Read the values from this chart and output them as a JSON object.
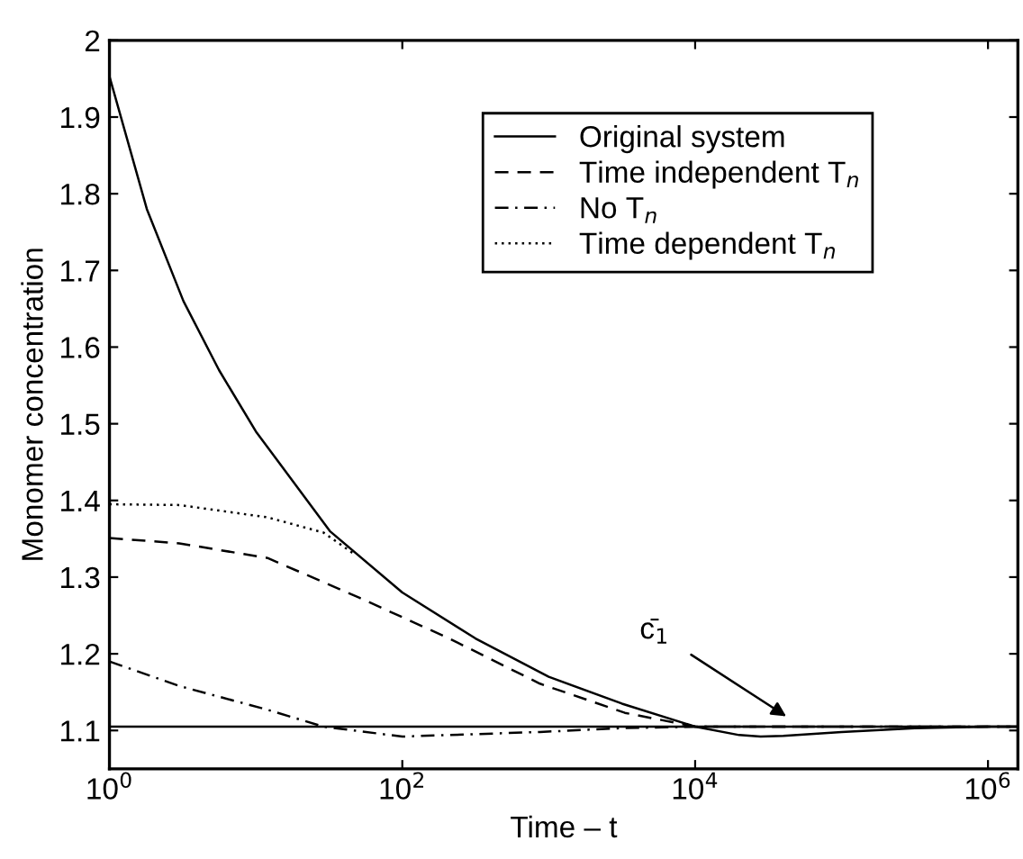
{
  "chart_data": {
    "type": "line",
    "xlabel": "Time – t",
    "ylabel": "Monomer concentration",
    "log": "x",
    "grid": false,
    "legend": "top right",
    "marker": "none",
    "xlim": [
      1,
      1600000
    ],
    "xticks": [
      {
        "value": 1,
        "label": "10$^{0}$"
      },
      {
        "value": 100,
        "label": "10$^{2}$"
      },
      {
        "value": 10000,
        "label": "10$^{4}$"
      },
      {
        "value": 1000000,
        "label": "10$^{6}$"
      }
    ],
    "ylim": [
      1.05,
      2
    ],
    "yticks": [
      1.1,
      1.2,
      1.3,
      1.4,
      1.5,
      1.6,
      1.7,
      1.8,
      1.9,
      2
    ],
    "series": [
      {
        "name": "Original system",
        "color": "#000000",
        "line_style": "solid",
        "x": [
          1,
          1.8,
          3.2,
          5.6,
          10,
          32,
          100,
          316,
          1000,
          3162,
          10000,
          20000,
          28000,
          40000,
          100000,
          316000,
          1000000,
          1600000
        ],
        "values": [
          1.953,
          1.78,
          1.66,
          1.57,
          1.49,
          1.36,
          1.28,
          1.22,
          1.17,
          1.135,
          1.105,
          1.094,
          1.092,
          1.093,
          1.098,
          1.103,
          1.105,
          1.105
        ]
      },
      {
        "name": "Time independent T$_{n}$",
        "color": "#000000",
        "line_style": "dashed",
        "x": [
          1,
          3,
          12,
          51,
          209,
          871,
          3311,
          10000,
          1600000
        ],
        "values": [
          1.351,
          1.344,
          1.325,
          1.273,
          1.22,
          1.161,
          1.123,
          1.105,
          1.105
        ]
      },
      {
        "name": "No T$_{n}$",
        "color": "#000000",
        "line_style": "dashdot",
        "x": [
          1,
          3,
          12,
          29,
          100,
          871,
          3162,
          10000,
          1600000
        ],
        "values": [
          1.19,
          1.158,
          1.127,
          1.105,
          1.092,
          1.098,
          1.103,
          1.105,
          1.105
        ]
      },
      {
        "name": "Time dependent T$_{n}$",
        "color": "#000000",
        "line_style": "dotted",
        "x": [
          1,
          3,
          12,
          29,
          47
        ],
        "values": [
          1.395,
          1.394,
          1.378,
          1.358,
          1.33
        ]
      }
    ],
    "ref_lines": [
      {
        "axis": "y",
        "value": 1.105,
        "color": "#000000",
        "line_style": "solid"
      }
    ],
    "annotations": [
      "c̄$_{1}$"
    ]
  }
}
